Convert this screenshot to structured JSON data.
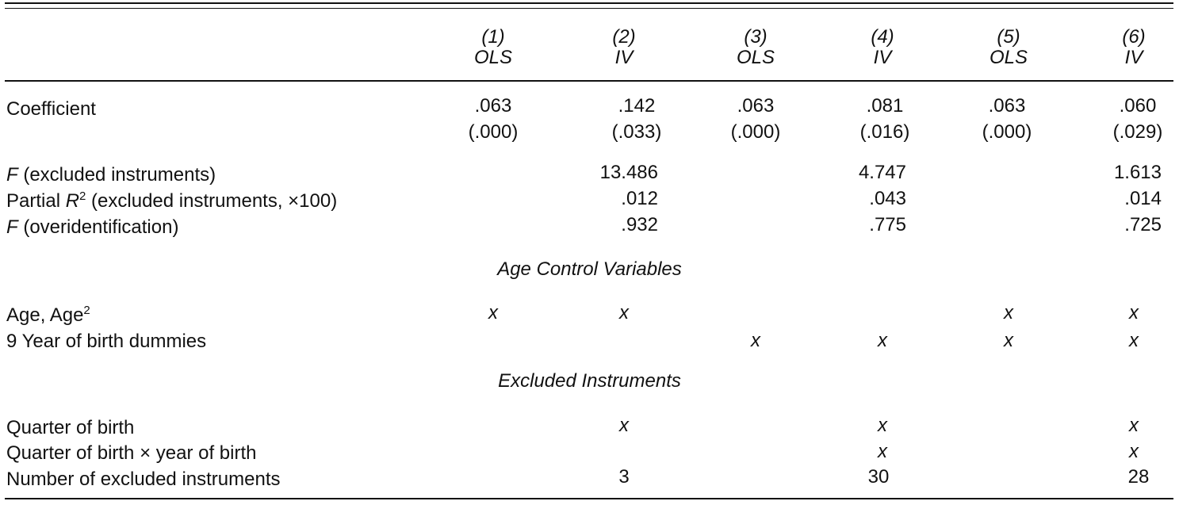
{
  "columns": [
    {
      "num": "(1)",
      "method": "OLS"
    },
    {
      "num": "(2)",
      "method": "IV"
    },
    {
      "num": "(3)",
      "method": "OLS"
    },
    {
      "num": "(4)",
      "method": "IV"
    },
    {
      "num": "(5)",
      "method": "OLS"
    },
    {
      "num": "(6)",
      "method": "IV"
    }
  ],
  "coefficient": {
    "label": "Coefficient",
    "values": [
      ".063",
      ".142",
      ".063",
      ".081",
      ".063",
      ".060"
    ],
    "se": [
      "(.000)",
      "(.033)",
      "(.000)",
      "(.016)",
      "(.000)",
      "(.029)"
    ]
  },
  "stats": {
    "f_excluded": {
      "label_italic": "F",
      "label_rest": " (excluded instruments)",
      "col2": "13.486",
      "col4": "4.747",
      "col6": "1.613"
    },
    "partial_r2": {
      "label_pre": "Partial ",
      "label_italic": "R",
      "label_sup": "2",
      "label_rest": " (excluded instruments, ×100)",
      "col2": ".012",
      "col4": ".043",
      "col6": ".014"
    },
    "f_overid": {
      "label_italic": "F",
      "label_rest": " (overidentification)",
      "col2": ".932",
      "col4": ".775",
      "col6": ".725"
    }
  },
  "age_controls": {
    "title": "Age Control Variables",
    "age_row": {
      "label": "Age, Age",
      "label_sup": "2",
      "marks": [
        "x",
        "x",
        "",
        "",
        "x",
        "x"
      ]
    },
    "yob_row": {
      "label": "9 Year of birth dummies",
      "marks": [
        "",
        "",
        "x",
        "x",
        "x",
        "x"
      ]
    }
  },
  "excluded_instruments": {
    "title": "Excluded Instruments",
    "qob_row": {
      "label": "Quarter of birth",
      "marks": [
        "",
        "x",
        "",
        "x",
        "",
        "x"
      ]
    },
    "qobyob_row": {
      "label": "Quarter of birth × year of birth",
      "marks": [
        "",
        "",
        "",
        "x",
        "",
        "x"
      ]
    },
    "count_row": {
      "label": "Number of excluded instruments",
      "col2": "3",
      "col4": "30",
      "col6": "28"
    }
  }
}
